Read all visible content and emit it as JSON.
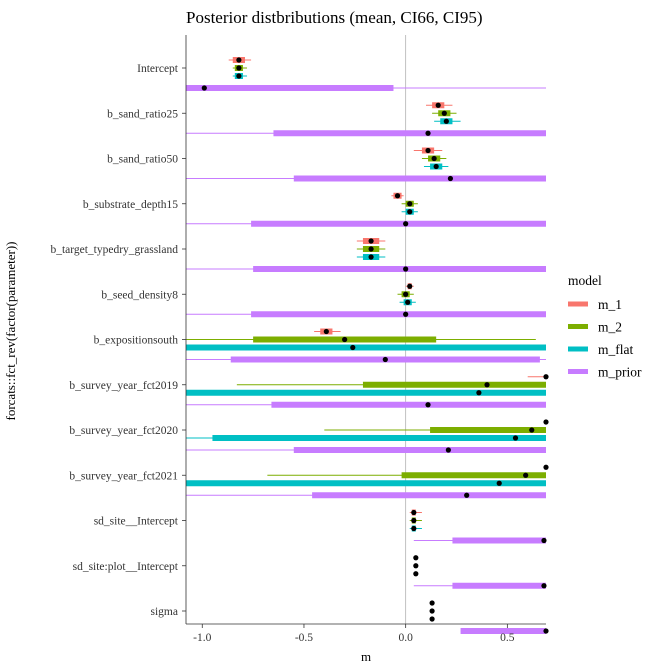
{
  "chart_data": {
    "type": "interval",
    "title": "Posterior distbributions (mean, CI66, CI95)",
    "xlabel": "m",
    "ylabel": "forcats::fct_rev(factor(parameter))",
    "xlim": [
      -1.08,
      0.69
    ],
    "xticks": [
      {
        "value": -1.0,
        "label": "-1.0"
      },
      {
        "value": -0.5,
        "label": "-0.5"
      },
      {
        "value": 0.0,
        "label": "0.0"
      },
      {
        "value": 0.5,
        "label": "0.5"
      }
    ],
    "grid": false,
    "reference_line": 0,
    "legend": {
      "title": "model",
      "position": "right",
      "entries": [
        {
          "name": "m_1",
          "color": "#F8766D"
        },
        {
          "name": "m_2",
          "color": "#7CAE00"
        },
        {
          "name": "m_flat",
          "color": "#00BFC4"
        },
        {
          "name": "m_prior",
          "color": "#C77CFF"
        }
      ]
    },
    "models": [
      "m_1",
      "m_2",
      "m_flat",
      "m_prior"
    ],
    "parameters": [
      {
        "name": "Intercept",
        "estimates": [
          {
            "model": "m_1",
            "mean": -0.82,
            "ci66": [
              -0.85,
              -0.79
            ],
            "ci95": [
              -0.87,
              -0.76
            ]
          },
          {
            "model": "m_2",
            "mean": -0.82,
            "ci66": [
              -0.84,
              -0.8
            ],
            "ci95": [
              -0.85,
              -0.78
            ]
          },
          {
            "model": "m_flat",
            "mean": -0.82,
            "ci66": [
              -0.84,
              -0.8
            ],
            "ci95": [
              -0.85,
              -0.78
            ]
          },
          {
            "model": "m_prior",
            "mean": -0.99,
            "ci66": [
              -1.08,
              -0.06
            ],
            "ci95": [
              -1.08,
              0.69
            ]
          }
        ]
      },
      {
        "name": "b_sand_ratio25",
        "estimates": [
          {
            "model": "m_1",
            "mean": 0.16,
            "ci66": [
              0.13,
              0.19
            ],
            "ci95": [
              0.1,
              0.23
            ]
          },
          {
            "model": "m_2",
            "mean": 0.19,
            "ci66": [
              0.16,
              0.22
            ],
            "ci95": [
              0.13,
              0.25
            ]
          },
          {
            "model": "m_flat",
            "mean": 0.2,
            "ci66": [
              0.17,
              0.23
            ],
            "ci95": [
              0.14,
              0.27
            ]
          },
          {
            "model": "m_prior",
            "mean": 0.11,
            "ci66": [
              -0.65,
              0.69
            ],
            "ci95": [
              -1.08,
              0.69
            ]
          }
        ]
      },
      {
        "name": "b_sand_ratio50",
        "estimates": [
          {
            "model": "m_1",
            "mean": 0.11,
            "ci66": [
              0.08,
              0.14
            ],
            "ci95": [
              0.04,
              0.18
            ]
          },
          {
            "model": "m_2",
            "mean": 0.14,
            "ci66": [
              0.11,
              0.17
            ],
            "ci95": [
              0.08,
              0.2
            ]
          },
          {
            "model": "m_flat",
            "mean": 0.15,
            "ci66": [
              0.12,
              0.18
            ],
            "ci95": [
              0.09,
              0.21
            ]
          },
          {
            "model": "m_prior",
            "mean": 0.22,
            "ci66": [
              -0.55,
              0.69
            ],
            "ci95": [
              -1.08,
              0.69
            ]
          }
        ]
      },
      {
        "name": "b_substrate_depth15",
        "estimates": [
          {
            "model": "m_1",
            "mean": -0.04,
            "ci66": [
              -0.06,
              -0.02
            ],
            "ci95": [
              -0.07,
              -0.01
            ]
          },
          {
            "model": "m_2",
            "mean": 0.02,
            "ci66": [
              0.0,
              0.04
            ],
            "ci95": [
              -0.02,
              0.06
            ]
          },
          {
            "model": "m_flat",
            "mean": 0.02,
            "ci66": [
              0.0,
              0.04
            ],
            "ci95": [
              -0.02,
              0.06
            ]
          },
          {
            "model": "m_prior",
            "mean": 0.0,
            "ci66": [
              -0.76,
              0.69
            ],
            "ci95": [
              -1.08,
              0.69
            ]
          }
        ]
      },
      {
        "name": "b_target_typedry_grassland",
        "estimates": [
          {
            "model": "m_1",
            "mean": -0.17,
            "ci66": [
              -0.21,
              -0.13
            ],
            "ci95": [
              -0.24,
              -0.1
            ]
          },
          {
            "model": "m_2",
            "mean": -0.17,
            "ci66": [
              -0.21,
              -0.13
            ],
            "ci95": [
              -0.24,
              -0.1
            ]
          },
          {
            "model": "m_flat",
            "mean": -0.17,
            "ci66": [
              -0.21,
              -0.13
            ],
            "ci95": [
              -0.24,
              -0.1
            ]
          },
          {
            "model": "m_prior",
            "mean": 0.0,
            "ci66": [
              -0.75,
              0.69
            ],
            "ci95": [
              -1.08,
              0.69
            ]
          }
        ]
      },
      {
        "name": "b_seed_density8",
        "estimates": [
          {
            "model": "m_1",
            "mean": 0.02,
            "ci66": [
              0.01,
              0.03
            ],
            "ci95": [
              0.0,
              0.04
            ]
          },
          {
            "model": "m_2",
            "mean": 0.0,
            "ci66": [
              -0.02,
              0.02
            ],
            "ci95": [
              -0.04,
              0.04
            ]
          },
          {
            "model": "m_flat",
            "mean": 0.01,
            "ci66": [
              -0.01,
              0.03
            ],
            "ci95": [
              -0.03,
              0.05
            ]
          },
          {
            "model": "m_prior",
            "mean": 0.0,
            "ci66": [
              -0.76,
              0.69
            ],
            "ci95": [
              -1.08,
              0.69
            ]
          }
        ]
      },
      {
        "name": "b_expositionsouth",
        "estimates": [
          {
            "model": "m_1",
            "mean": -0.39,
            "ci66": [
              -0.42,
              -0.36
            ],
            "ci95": [
              -0.45,
              -0.32
            ]
          },
          {
            "model": "m_2",
            "mean": -0.3,
            "ci66": [
              -0.75,
              0.15
            ],
            "ci95": [
              -1.08,
              0.64
            ]
          },
          {
            "model": "m_flat",
            "mean": -0.26,
            "ci66": [
              -1.08,
              0.69
            ],
            "ci95": [
              -1.08,
              0.69
            ]
          },
          {
            "model": "m_prior",
            "mean": -0.1,
            "ci66": [
              -0.86,
              0.66
            ],
            "ci95": [
              -1.08,
              0.69
            ]
          }
        ]
      },
      {
        "name": "b_survey_year_fct2019",
        "estimates": [
          {
            "model": "m_1",
            "mean": 0.69,
            "ci66": [
              0.69,
              0.69
            ],
            "ci95": [
              0.6,
              0.69
            ]
          },
          {
            "model": "m_2",
            "mean": 0.4,
            "ci66": [
              -0.21,
              0.69
            ],
            "ci95": [
              -0.83,
              0.69
            ]
          },
          {
            "model": "m_flat",
            "mean": 0.36,
            "ci66": [
              -1.08,
              0.69
            ],
            "ci95": [
              -1.08,
              0.69
            ]
          },
          {
            "model": "m_prior",
            "mean": 0.11,
            "ci66": [
              -0.66,
              0.69
            ],
            "ci95": [
              -1.08,
              0.69
            ]
          }
        ]
      },
      {
        "name": "b_survey_year_fct2020",
        "estimates": [
          {
            "model": "m_1",
            "mean": 0.69,
            "ci66": [
              0.69,
              0.69
            ],
            "ci95": [
              0.69,
              0.69
            ]
          },
          {
            "model": "m_2",
            "mean": 0.62,
            "ci66": [
              0.12,
              0.69
            ],
            "ci95": [
              -0.4,
              0.69
            ]
          },
          {
            "model": "m_flat",
            "mean": 0.54,
            "ci66": [
              -0.95,
              0.69
            ],
            "ci95": [
              -1.08,
              0.69
            ]
          },
          {
            "model": "m_prior",
            "mean": 0.21,
            "ci66": [
              -0.55,
              0.69
            ],
            "ci95": [
              -1.08,
              0.69
            ]
          }
        ]
      },
      {
        "name": "b_survey_year_fct2021",
        "estimates": [
          {
            "model": "m_1",
            "mean": 0.69,
            "ci66": [
              0.69,
              0.69
            ],
            "ci95": [
              0.69,
              0.69
            ]
          },
          {
            "model": "m_2",
            "mean": 0.59,
            "ci66": [
              -0.02,
              0.69
            ],
            "ci95": [
              -0.68,
              0.69
            ]
          },
          {
            "model": "m_flat",
            "mean": 0.46,
            "ci66": [
              -1.08,
              0.69
            ],
            "ci95": [
              -1.08,
              0.69
            ]
          },
          {
            "model": "m_prior",
            "mean": 0.3,
            "ci66": [
              -0.46,
              0.69
            ],
            "ci95": [
              -1.08,
              0.69
            ]
          }
        ]
      },
      {
        "name": "sd_site__Intercept",
        "estimates": [
          {
            "model": "m_1",
            "mean": 0.04,
            "ci66": [
              0.03,
              0.05
            ],
            "ci95": [
              0.02,
              0.08
            ]
          },
          {
            "model": "m_2",
            "mean": 0.04,
            "ci66": [
              0.03,
              0.05
            ],
            "ci95": [
              0.02,
              0.08
            ]
          },
          {
            "model": "m_flat",
            "mean": 0.04,
            "ci66": [
              0.03,
              0.05
            ],
            "ci95": [
              0.02,
              0.08
            ]
          },
          {
            "model": "m_prior",
            "mean": 0.68,
            "ci66": [
              0.23,
              0.69
            ],
            "ci95": [
              0.04,
              0.69
            ]
          }
        ]
      },
      {
        "name": "sd_site:plot__Intercept",
        "estimates": [
          {
            "model": "m_1",
            "mean": 0.05,
            "ci66": [
              0.05,
              0.05
            ],
            "ci95": [
              0.05,
              0.05
            ]
          },
          {
            "model": "m_2",
            "mean": 0.05,
            "ci66": [
              0.05,
              0.05
            ],
            "ci95": [
              0.05,
              0.05
            ]
          },
          {
            "model": "m_flat",
            "mean": 0.05,
            "ci66": [
              0.05,
              0.05
            ],
            "ci95": [
              0.05,
              0.05
            ]
          },
          {
            "model": "m_prior",
            "mean": 0.68,
            "ci66": [
              0.23,
              0.69
            ],
            "ci95": [
              0.04,
              0.69
            ]
          }
        ]
      },
      {
        "name": "sigma",
        "estimates": [
          {
            "model": "m_1",
            "mean": 0.13,
            "ci66": [
              0.13,
              0.13
            ],
            "ci95": [
              0.13,
              0.13
            ]
          },
          {
            "model": "m_2",
            "mean": 0.13,
            "ci66": [
              0.13,
              0.13
            ],
            "ci95": [
              0.13,
              0.13
            ]
          },
          {
            "model": "m_flat",
            "mean": 0.13,
            "ci66": [
              0.13,
              0.13
            ],
            "ci95": [
              0.13,
              0.13
            ]
          },
          {
            "model": "m_prior",
            "mean": 0.69,
            "ci66": [
              0.27,
              0.69
            ],
            "ci95": [
              0.27,
              0.69
            ]
          }
        ]
      }
    ]
  }
}
